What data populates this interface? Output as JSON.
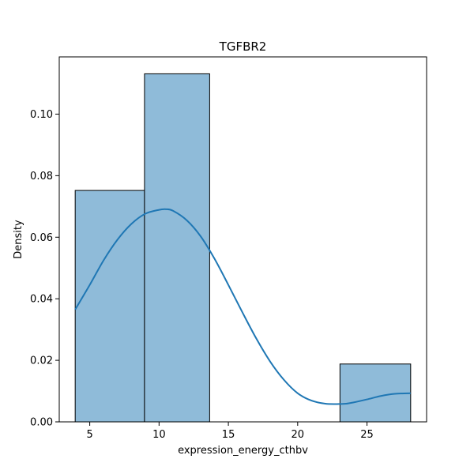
{
  "chart_data": {
    "type": "bar",
    "title": "TGFBR2",
    "xlabel": "expression_energy_cthbv",
    "ylabel": "Density",
    "xlim": [
      2.8,
      29.3
    ],
    "ylim": [
      0,
      0.1186
    ],
    "xticks": [
      5,
      10,
      15,
      20,
      25
    ],
    "yticks": [
      0.0,
      0.02,
      0.04,
      0.06,
      0.08,
      0.1
    ],
    "ytick_labels": [
      "0.00",
      "0.02",
      "0.04",
      "0.06",
      "0.08",
      "0.10"
    ],
    "grid": false,
    "bars": [
      {
        "x0": 3.95,
        "x1": 8.95,
        "value": 0.0752
      },
      {
        "x0": 8.95,
        "x1": 13.65,
        "value": 0.1131
      },
      {
        "x0": 13.65,
        "x1": 18.35,
        "value": 0.0
      },
      {
        "x0": 18.35,
        "x1": 23.05,
        "value": 0.0
      },
      {
        "x0": 23.05,
        "x1": 28.15,
        "value": 0.0188
      }
    ],
    "kde": {
      "name": "",
      "x": [
        3.95,
        5.0,
        6.0,
        7.0,
        8.0,
        9.0,
        10.0,
        10.5,
        11.0,
        12.0,
        13.0,
        14.0,
        15.0,
        16.0,
        17.0,
        18.0,
        19.0,
        20.0,
        21.0,
        22.0,
        23.0,
        23.5,
        24.0,
        25.0,
        26.0,
        27.0,
        28.15
      ],
      "y": [
        0.0365,
        0.0445,
        0.0525,
        0.0592,
        0.0643,
        0.0676,
        0.0689,
        0.0691,
        0.0686,
        0.0655,
        0.0603,
        0.053,
        0.0445,
        0.0357,
        0.0272,
        0.0197,
        0.0137,
        0.0093,
        0.0069,
        0.0059,
        0.0058,
        0.0059,
        0.0063,
        0.0073,
        0.0084,
        0.0091,
        0.0093
      ]
    },
    "colors": {
      "bar_fill": "#8fbbd9",
      "bar_edge": "#000000",
      "kde_line": "#1f77b4"
    }
  }
}
